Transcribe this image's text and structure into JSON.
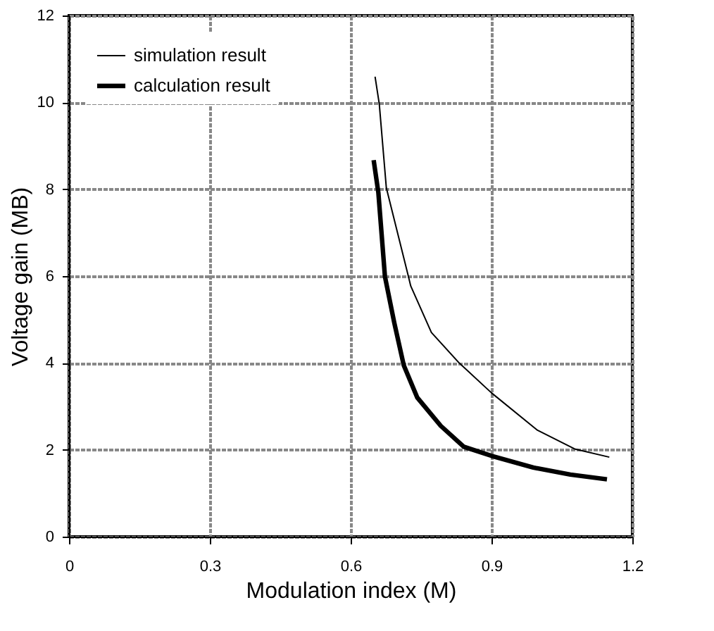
{
  "chart_data": {
    "type": "line",
    "xlabel": "Modulation index (M)",
    "ylabel": "Voltage gain (MB)",
    "xlim": [
      0,
      1.2
    ],
    "xticks": [
      0,
      0.3,
      0.6,
      0.9,
      1.2
    ],
    "ylim": [
      0,
      12
    ],
    "yticks": [
      0,
      2,
      4,
      6,
      8,
      10,
      12
    ],
    "grid": true,
    "legend": "top left",
    "marker": "none",
    "line_style": "solid",
    "series": [
      {
        "name": "simulation result",
        "color": "#000000",
        "x": [
          0.652,
          0.661,
          0.676,
          0.723,
          0.728,
          0.772,
          0.831,
          0.9,
          0.998,
          1.077,
          1.151
        ],
        "values": [
          10.59,
          9.96,
          8.03,
          5.99,
          5.77,
          4.7,
          4.0,
          3.31,
          2.45,
          2.02,
          1.83
        ]
      },
      {
        "name": "calculation result",
        "color": "#000000",
        "x": [
          0.649,
          0.659,
          0.673,
          0.693,
          0.713,
          0.742,
          0.792,
          0.841,
          0.9,
          0.989,
          1.068,
          1.146
        ],
        "values": [
          8.67,
          7.92,
          5.99,
          4.92,
          3.95,
          3.2,
          2.55,
          2.07,
          1.86,
          1.59,
          1.43,
          1.32
        ]
      }
    ]
  }
}
